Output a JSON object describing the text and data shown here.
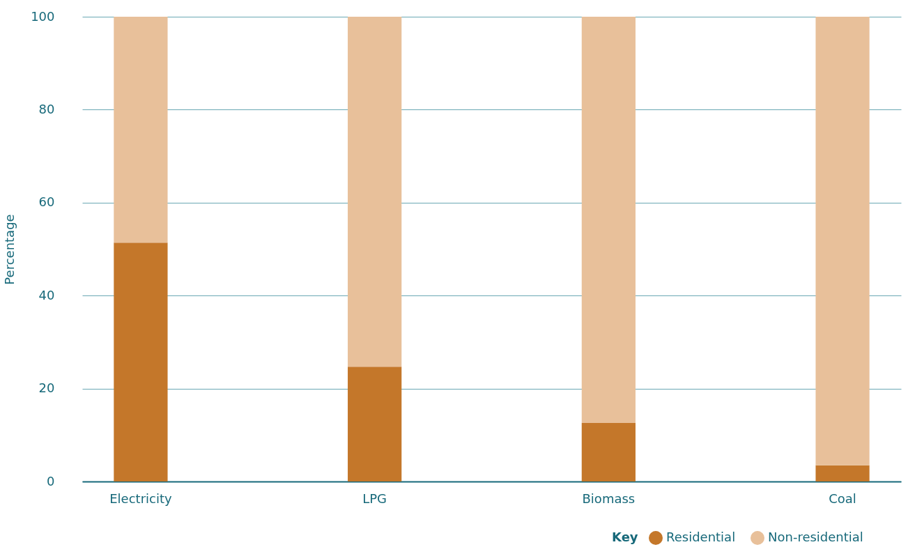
{
  "chart_data": {
    "type": "bar",
    "ylabel": "Percentage",
    "legend_title": "Key",
    "categories": [
      "Electricity",
      "LPG",
      "Biomass",
      "Coal"
    ],
    "series": [
      {
        "name": "Residential",
        "color": "#c4772a",
        "values": [
          51.4,
          24.7,
          12.6,
          3.5
        ]
      },
      {
        "name": "Non-residential",
        "color": "#e8c09a",
        "values": [
          48.6,
          75.3,
          87.4,
          96.5
        ]
      }
    ],
    "stacked": true,
    "ylim": [
      0,
      100
    ],
    "yticks": [
      0,
      20,
      40,
      60,
      80,
      100
    ],
    "grid": "y",
    "legend": "bottom right"
  }
}
